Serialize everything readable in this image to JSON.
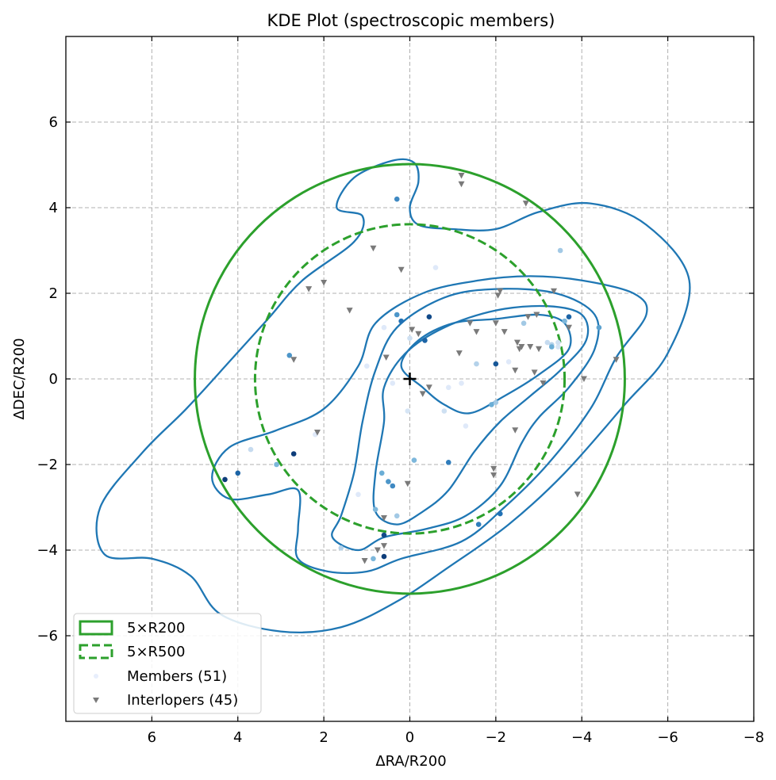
{
  "chart_data": {
    "type": "scatter",
    "title": "KDE Plot (spectroscopic members)",
    "xlabel": "ΔRA/R200",
    "ylabel": "ΔDEC/R200",
    "xlim": [
      8,
      -8
    ],
    "ylim": [
      -8,
      8
    ],
    "xticks": [
      6,
      4,
      2,
      0,
      -2,
      -4,
      -6,
      -8
    ],
    "xtick_labels": [
      "6",
      "4",
      "2",
      "0",
      "−2",
      "−4",
      "−6",
      "−8"
    ],
    "yticks": [
      6,
      4,
      2,
      0,
      -2,
      -4,
      -6
    ],
    "ytick_labels": [
      "6",
      "4",
      "2",
      "0",
      "−2",
      "−4",
      "−6"
    ],
    "grid": true,
    "legend_position": "lower-left",
    "colors": {
      "circle": "#2ca02c",
      "contour": "#1f77b4",
      "interloper": "#7a7a7a",
      "grid": "#b0b0b0"
    },
    "center_marker": [
      0,
      0
    ],
    "circles": [
      {
        "name": "5×R200",
        "radius": 5.0,
        "style": "solid"
      },
      {
        "name": "5×R500",
        "radius": 3.6,
        "style": "dashed"
      }
    ],
    "kde_contours": [
      [
        [
          0.4,
          5.1
        ],
        [
          -0.1,
          5.05
        ],
        [
          -0.2,
          4.6
        ],
        [
          0,
          4.0
        ],
        [
          -0.2,
          3.6
        ],
        [
          -1.0,
          3.5
        ],
        [
          -2.0,
          3.5
        ],
        [
          -3.0,
          3.9
        ],
        [
          -4.2,
          4.1
        ],
        [
          -5.5,
          3.6
        ],
        [
          -6.5,
          2.3
        ],
        [
          -6.0,
          0.6
        ],
        [
          -5.0,
          -0.6
        ],
        [
          -3.6,
          -2.2
        ],
        [
          -2.3,
          -3.4
        ],
        [
          -0.9,
          -4.4
        ],
        [
          0.3,
          -5.2
        ],
        [
          1.6,
          -5.8
        ],
        [
          3.0,
          -5.9
        ],
        [
          4.4,
          -5.5
        ],
        [
          5.1,
          -4.6
        ],
        [
          6.0,
          -4.2
        ],
        [
          7.1,
          -4.1
        ],
        [
          7.2,
          -3.0
        ],
        [
          6.2,
          -1.7
        ],
        [
          5.2,
          -0.7
        ],
        [
          4.2,
          0.4
        ],
        [
          3.3,
          1.4
        ],
        [
          2.5,
          2.3
        ],
        [
          1.3,
          3.2
        ],
        [
          1.1,
          3.8
        ],
        [
          1.7,
          4.0
        ],
        [
          1.3,
          4.7
        ],
        [
          0.4,
          5.1
        ]
      ],
      [
        [
          4.6,
          -2.3
        ],
        [
          4.2,
          -2.8
        ],
        [
          3.3,
          -2.7
        ],
        [
          2.6,
          -2.6
        ],
        [
          2.6,
          -3.5
        ],
        [
          2.6,
          -4.2
        ],
        [
          1.9,
          -4.5
        ],
        [
          1.0,
          -4.5
        ],
        [
          0.2,
          -4.2
        ],
        [
          -1.2,
          -3.8
        ],
        [
          -2.2,
          -3.0
        ],
        [
          -3.2,
          -2.0
        ],
        [
          -4.2,
          -0.7
        ],
        [
          -4.8,
          0.5
        ],
        [
          -5.5,
          1.5
        ],
        [
          -5.2,
          2.0
        ],
        [
          -4.0,
          2.3
        ],
        [
          -2.8,
          2.4
        ],
        [
          -1.6,
          2.3
        ],
        [
          -0.3,
          2.0
        ],
        [
          0.8,
          1.3
        ],
        [
          1.2,
          0.3
        ],
        [
          2.0,
          -0.7
        ],
        [
          3.1,
          -1.2
        ],
        [
          4.2,
          -1.6
        ],
        [
          4.6,
          -2.3
        ]
      ],
      [
        [
          1.8,
          -3.7
        ],
        [
          1.6,
          -3.2
        ],
        [
          1.3,
          -2.2
        ],
        [
          1.1,
          -1.0
        ],
        [
          0.8,
          0.2
        ],
        [
          0.3,
          1.2
        ],
        [
          -0.8,
          1.9
        ],
        [
          -2.0,
          2.1
        ],
        [
          -3.4,
          2.0
        ],
        [
          -4.3,
          1.5
        ],
        [
          -4.3,
          0.7
        ],
        [
          -3.7,
          -0.2
        ],
        [
          -3.0,
          -0.9
        ],
        [
          -2.6,
          -1.5
        ],
        [
          -2.1,
          -2.5
        ],
        [
          -1.3,
          -3.2
        ],
        [
          -0.4,
          -3.5
        ],
        [
          0.6,
          -3.7
        ],
        [
          1.2,
          -4.0
        ],
        [
          1.8,
          -3.7
        ]
      ],
      [
        [
          0.8,
          -3.1
        ],
        [
          0.8,
          -2.2
        ],
        [
          0.6,
          -1.0
        ],
        [
          0.6,
          -0.2
        ],
        [
          0.1,
          0.6
        ],
        [
          -0.8,
          1.2
        ],
        [
          -2.0,
          1.6
        ],
        [
          -3.2,
          1.7
        ],
        [
          -4.0,
          1.5
        ],
        [
          -4.1,
          0.9
        ],
        [
          -3.5,
          0.2
        ],
        [
          -2.8,
          -0.4
        ],
        [
          -2.1,
          -1.0
        ],
        [
          -1.5,
          -1.7
        ],
        [
          -0.9,
          -2.6
        ],
        [
          -0.3,
          -3.1
        ],
        [
          0.3,
          -3.4
        ],
        [
          0.8,
          -3.1
        ]
      ],
      [
        [
          0.2,
          0.3
        ],
        [
          -0.2,
          0.9
        ],
        [
          -1.0,
          1.3
        ],
        [
          -2.0,
          1.4
        ],
        [
          -3.0,
          1.5
        ],
        [
          -3.6,
          1.3
        ],
        [
          -3.7,
          0.7
        ],
        [
          -3.0,
          0.1
        ],
        [
          -2.2,
          -0.4
        ],
        [
          -1.4,
          -0.8
        ],
        [
          -0.8,
          -0.6
        ],
        [
          -0.3,
          -0.2
        ],
        [
          0.2,
          0.3
        ]
      ]
    ],
    "legend": [
      {
        "label": "5×R200",
        "kind": "circle-solid"
      },
      {
        "label": "5×R500",
        "kind": "circle-dashed"
      },
      {
        "label": "Members (51)",
        "kind": "member"
      },
      {
        "label": "Interlopers (45)",
        "kind": "interloper"
      }
    ],
    "members": [
      [
        0.3,
        4.2,
        0.65
      ],
      [
        -3.5,
        3.0,
        0.35
      ],
      [
        -3.7,
        1.45,
        0.8
      ],
      [
        -4.4,
        1.2,
        0.55
      ],
      [
        -3.6,
        1.35,
        0.45
      ],
      [
        0.3,
        1.5,
        0.6
      ],
      [
        0.2,
        1.35,
        0.75
      ],
      [
        -0.45,
        1.45,
        0.9
      ],
      [
        -0.35,
        0.9,
        0.8
      ],
      [
        0.0,
        0.95,
        0.2
      ],
      [
        -1.55,
        0.35,
        0.3
      ],
      [
        -2.0,
        0.35,
        0.85
      ],
      [
        -2.65,
        1.3,
        0.35
      ],
      [
        -3.3,
        0.8,
        0.3
      ],
      [
        -3.3,
        0.75,
        0.5
      ],
      [
        -3.2,
        0.85,
        0.25
      ],
      [
        -3.45,
        0.75,
        0.15
      ],
      [
        -3.45,
        0.85,
        0.2
      ],
      [
        2.8,
        0.55,
        0.6
      ],
      [
        -0.9,
        -0.2,
        0.1
      ],
      [
        0.05,
        -0.75,
        0.15
      ],
      [
        -0.8,
        -0.75,
        0.2
      ],
      [
        -1.9,
        -0.6,
        0.5
      ],
      [
        -2.0,
        -0.55,
        0.35
      ],
      [
        3.7,
        -1.65,
        0.25
      ],
      [
        2.7,
        -1.75,
        0.95
      ],
      [
        3.1,
        -2.0,
        0.45
      ],
      [
        4.0,
        -2.2,
        0.8
      ],
      [
        4.3,
        -2.35,
        0.95
      ],
      [
        -0.1,
        -1.9,
        0.45
      ],
      [
        -0.9,
        -1.95,
        0.7
      ],
      [
        0.65,
        -2.2,
        0.5
      ],
      [
        0.5,
        -2.4,
        0.6
      ],
      [
        0.4,
        -2.5,
        0.65
      ],
      [
        0.8,
        -3.05,
        0.45
      ],
      [
        0.3,
        -3.2,
        0.35
      ],
      [
        0.6,
        -3.65,
        0.9
      ],
      [
        0.85,
        -4.2,
        0.45
      ],
      [
        0.6,
        -4.15,
        0.95
      ],
      [
        1.6,
        -3.95,
        0.3
      ],
      [
        -1.6,
        -3.4,
        0.7
      ],
      [
        -2.1,
        -3.15,
        0.75
      ],
      [
        0.4,
        -0.1,
        0.1
      ],
      [
        -1.2,
        -0.1,
        0.1
      ],
      [
        1.0,
        0.3,
        0.1
      ],
      [
        -2.3,
        0.4,
        0.1
      ],
      [
        0.6,
        1.2,
        0.1
      ],
      [
        -1.3,
        -1.1,
        0.1
      ],
      [
        2.2,
        -1.3,
        0.1
      ],
      [
        -0.6,
        2.6,
        0.1
      ],
      [
        1.2,
        -2.7,
        0.1
      ]
    ],
    "interlopers": [
      [
        -1.2,
        4.75
      ],
      [
        -1.2,
        4.55
      ],
      [
        -2.7,
        4.1
      ],
      [
        0.85,
        3.05
      ],
      [
        0.2,
        2.55
      ],
      [
        2.0,
        2.25
      ],
      [
        2.35,
        2.1
      ],
      [
        -2.1,
        2.05
      ],
      [
        -2.05,
        1.95
      ],
      [
        -3.35,
        2.05
      ],
      [
        -1.4,
        1.3
      ],
      [
        -2.0,
        1.3
      ],
      [
        -1.55,
        1.1
      ],
      [
        -2.2,
        1.1
      ],
      [
        -2.75,
        1.45
      ],
      [
        -2.95,
        1.5
      ],
      [
        -3.7,
        1.2
      ],
      [
        -0.05,
        1.15
      ],
      [
        -0.2,
        1.05
      ],
      [
        -2.5,
        0.85
      ],
      [
        -2.55,
        0.7
      ],
      [
        -2.8,
        0.75
      ],
      [
        -3.0,
        0.7
      ],
      [
        -2.6,
        0.75
      ],
      [
        2.7,
        0.45
      ],
      [
        0.55,
        0.5
      ],
      [
        -2.45,
        0.2
      ],
      [
        -2.9,
        0.15
      ],
      [
        -4.05,
        0.0
      ],
      [
        -4.8,
        0.45
      ],
      [
        -1.95,
        -2.25
      ],
      [
        -1.95,
        -2.1
      ],
      [
        -2.45,
        -1.2
      ],
      [
        0.05,
        -2.45
      ],
      [
        -3.9,
        -2.7
      ],
      [
        0.6,
        -3.25
      ],
      [
        0.75,
        -4.0
      ],
      [
        0.6,
        -3.9
      ],
      [
        1.05,
        -4.25
      ],
      [
        -0.3,
        -0.35
      ],
      [
        2.15,
        -1.25
      ],
      [
        -1.15,
        0.6
      ],
      [
        -3.1,
        -0.1
      ],
      [
        1.4,
        1.6
      ],
      [
        -0.45,
        -0.2
      ]
    ]
  }
}
